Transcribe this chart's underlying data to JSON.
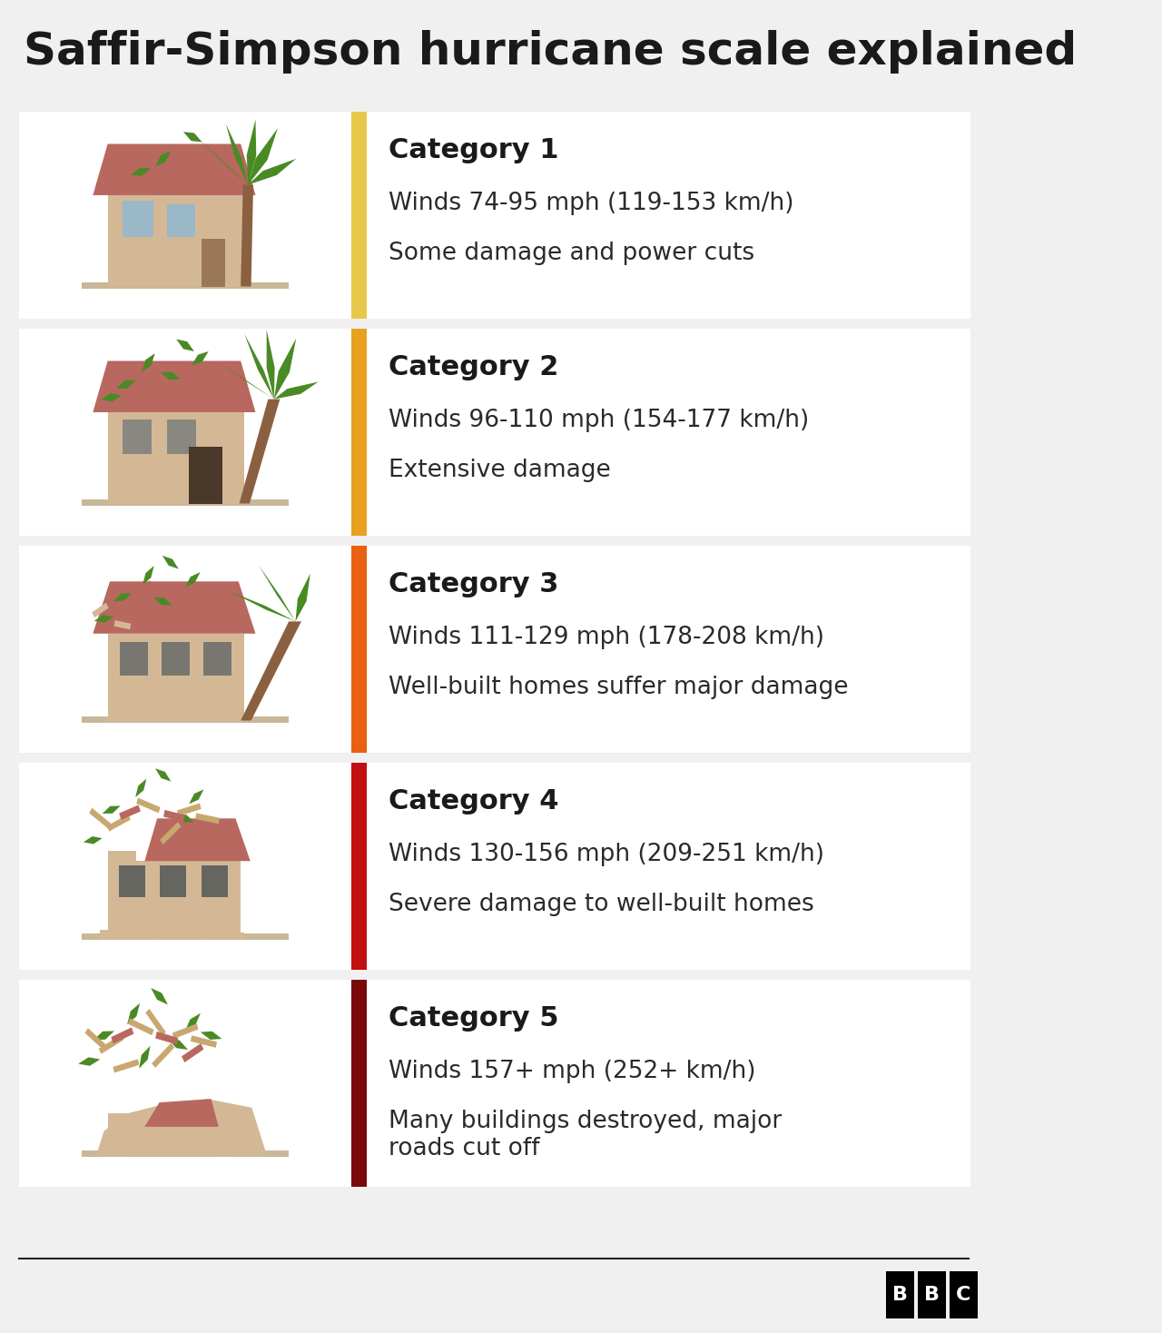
{
  "title": "Saffir-Simpson hurricane scale explained",
  "title_fontsize": 36,
  "title_color": "#1a1a1a",
  "background_color": "#f0f0f0",
  "panel_color": "#ffffff",
  "footer_line_color": "#222222",
  "categories": [
    {
      "number": 1,
      "heading": "Category 1",
      "line1": "Winds 74-95 mph (119-153 km/h)",
      "line2": "Some damage and power cuts",
      "bar_color": "#e8c84a"
    },
    {
      "number": 2,
      "heading": "Category 2",
      "line1": "Winds 96-110 mph (154-177 km/h)",
      "line2": "Extensive damage",
      "bar_color": "#e8a020"
    },
    {
      "number": 3,
      "heading": "Category 3",
      "line1": "Winds 111-129 mph (178-208 km/h)",
      "line2": "Well-built homes suffer major damage",
      "bar_color": "#e86010"
    },
    {
      "number": 4,
      "heading": "Category 4",
      "line1": "Winds 130-156 mph (209-251 km/h)",
      "line2": "Severe damage to well-built homes",
      "bar_color": "#c01010"
    },
    {
      "number": 5,
      "heading": "Category 5",
      "line1": "Winds 157+ mph (252+ km/h)",
      "line2": "Many buildings destroyed, major\nroads cut off",
      "bar_color": "#7a0a0a"
    }
  ],
  "heading_fontsize": 22,
  "text_fontsize": 19,
  "bbc_bg": "#000000",
  "bbc_text": "#ffffff",
  "wall_color": "#d4b896",
  "roof_color": "#b8685e",
  "window_color": "#9ab8c8",
  "door_color": "#9a7855",
  "trunk_color": "#8b6040",
  "leaf_color": "#4a8a25",
  "debris_tan": "#c8a870",
  "debris_red": "#b86858",
  "ground_color": "#c8b898"
}
